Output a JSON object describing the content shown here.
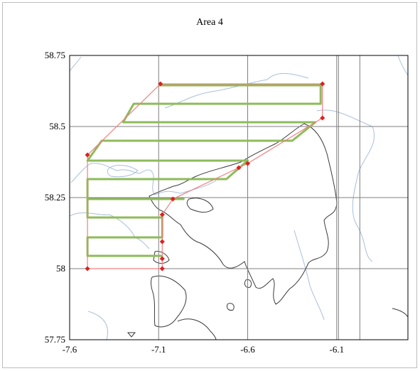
{
  "chart_data": {
    "type": "line",
    "title": "Area 4",
    "xlabel": "",
    "ylabel": "",
    "xlim": [
      -7.6,
      -5.7
    ],
    "ylim": [
      57.75,
      58.75
    ],
    "x_ticks": [
      -7.6,
      -7.1,
      -6.6,
      -6.1
    ],
    "x_tick_labels": [
      "-7.6",
      "-7.1",
      "-6.6",
      "-6.1"
    ],
    "y_ticks": [
      57.75,
      58.0,
      58.25,
      58.5,
      58.75
    ],
    "y_tick_labels": [
      "57.75",
      "58",
      "58.25",
      "58.5",
      "58.75"
    ],
    "grid": true,
    "extra_vertical_gridlines": [
      -6.09,
      -5.97
    ],
    "colors": {
      "boundary": "#f08080",
      "vertex": "#dd2020",
      "transect": "#8dbb5a",
      "coast": "#3a3a3a",
      "contour": "#a9bfdc",
      "grid": "#7f7f7f"
    },
    "series": [
      {
        "role": "survey-area-boundary",
        "points": [
          [
            -7.5,
            58.0
          ],
          [
            -7.5,
            58.4
          ],
          [
            -7.09,
            58.65
          ],
          [
            -6.18,
            58.65
          ],
          [
            -6.18,
            58.53
          ],
          [
            -6.6,
            58.37
          ],
          [
            -6.65,
            58.355
          ],
          [
            -7.02,
            58.245
          ],
          [
            -7.08,
            58.19
          ],
          [
            -7.08,
            58.0
          ],
          [
            -7.5,
            58.0
          ]
        ],
        "vertices": [
          [
            -7.5,
            58.0
          ],
          [
            -7.5,
            58.4
          ],
          [
            -7.09,
            58.65
          ],
          [
            -6.18,
            58.65
          ],
          [
            -6.18,
            58.53
          ],
          [
            -6.6,
            58.37
          ],
          [
            -6.65,
            58.355
          ],
          [
            -7.02,
            58.245
          ],
          [
            -7.08,
            58.19
          ],
          [
            -7.08,
            58.095
          ],
          [
            -7.08,
            58.035
          ],
          [
            -7.08,
            58.0
          ]
        ]
      },
      {
        "role": "transect-lines",
        "points": [
          [
            -7.1,
            58.645
          ],
          [
            -6.19,
            58.645
          ],
          [
            -6.19,
            58.58
          ],
          [
            -7.24,
            58.58
          ],
          [
            -7.3,
            58.515
          ],
          [
            -6.22,
            58.515
          ],
          [
            -6.35,
            58.45
          ],
          [
            -7.42,
            58.45
          ],
          [
            -7.5,
            58.38
          ],
          [
            -6.6,
            58.38
          ],
          [
            -6.72,
            58.315
          ],
          [
            -7.5,
            58.315
          ],
          [
            -7.5,
            58.245
          ],
          [
            -6.96,
            58.245
          ],
          [
            -7.5,
            58.245
          ],
          [
            -7.5,
            58.18
          ],
          [
            -7.08,
            58.18
          ],
          [
            -7.08,
            58.11
          ],
          [
            -7.5,
            58.11
          ],
          [
            -7.5,
            58.045
          ],
          [
            -7.08,
            58.045
          ]
        ]
      }
    ]
  }
}
